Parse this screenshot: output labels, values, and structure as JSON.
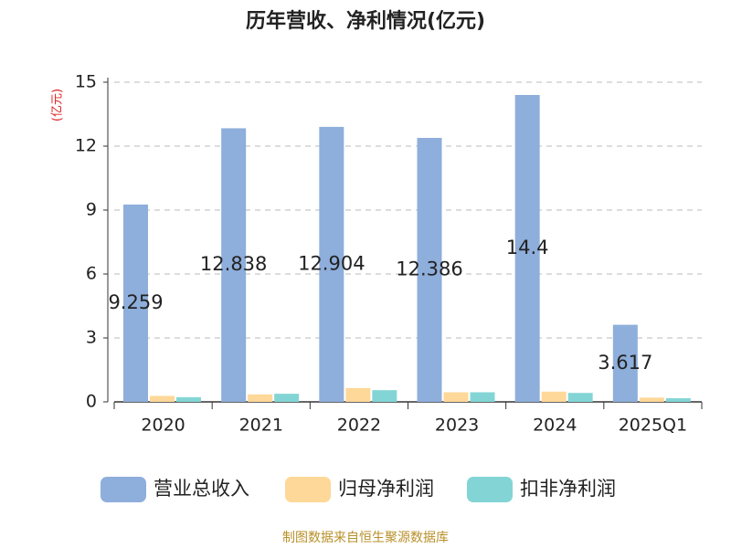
{
  "chart_data": {
    "type": "bar",
    "title": "历年营收、净利情况(亿元)",
    "y_label": "(亿元)",
    "source": "制图数据来自恒生聚源数据库",
    "categories": [
      "2020",
      "2021",
      "2022",
      "2023",
      "2024",
      "2025Q1"
    ],
    "series": [
      {
        "name": "营业总收入",
        "color": "#8eaedb",
        "values": [
          9.259,
          12.838,
          12.904,
          12.386,
          14.4,
          3.617
        ],
        "show_labels": true
      },
      {
        "name": "归母净利润",
        "color": "#fed898",
        "values": [
          0.28,
          0.35,
          0.65,
          0.45,
          0.48,
          0.2
        ]
      },
      {
        "name": "扣非净利润",
        "color": "#83d5d5",
        "values": [
          0.22,
          0.38,
          0.55,
          0.45,
          0.42,
          0.17
        ]
      }
    ],
    "ylim": [
      0,
      15
    ],
    "yticks": [
      0,
      3,
      6,
      9,
      12,
      15
    ],
    "grid": true
  }
}
